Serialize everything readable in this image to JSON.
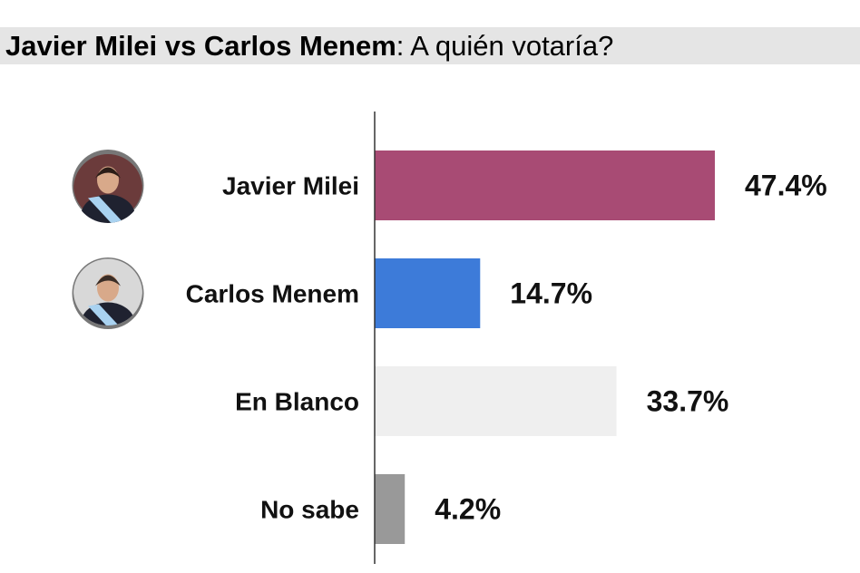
{
  "title": {
    "bold": "Javier Milei vs Carlos Menem",
    "rest": ": A quién votaría?"
  },
  "chart_data": {
    "type": "bar",
    "orientation": "horizontal",
    "categories": [
      "Javier Milei",
      "Carlos Menem",
      "En Blanco",
      "No sabe"
    ],
    "values": [
      47.4,
      14.7,
      33.7,
      4.2
    ],
    "value_labels": [
      "47.4%",
      "14.7%",
      "33.7%",
      "4.2%"
    ],
    "colors": [
      "#a84b74",
      "#3d7bd9",
      "#efefef",
      "#999999"
    ],
    "avatars": [
      "portrait-icon",
      "portrait-icon",
      null,
      null
    ],
    "xlim": [
      0,
      47.4
    ],
    "grid": false,
    "legend": "none"
  }
}
